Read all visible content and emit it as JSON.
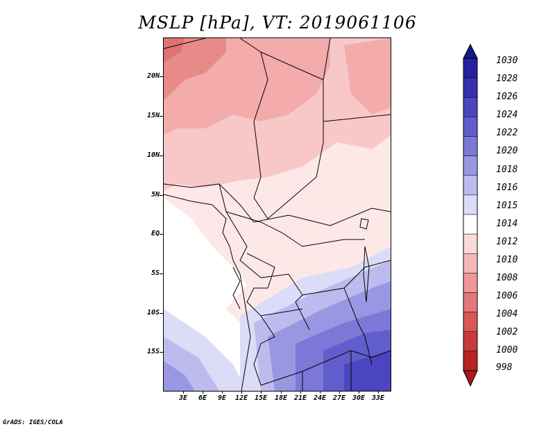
{
  "title": "MSLP [hPa], VT: 2019061106",
  "credit": "GrADS: IGES/COLA",
  "map": {
    "lat_labels": [
      "20N",
      "15N",
      "10N",
      "5N",
      "EQ",
      "5S",
      "10S",
      "15S"
    ],
    "lon_labels": [
      "3E",
      "6E",
      "9E",
      "12E",
      "15E",
      "18E",
      "21E",
      "24E",
      "27E",
      "30E",
      "33E"
    ]
  },
  "colorbar": {
    "labels": [
      "1030",
      "1028",
      "1026",
      "1024",
      "1022",
      "1020",
      "1018",
      "1016",
      "1015",
      "1014",
      "1012",
      "1010",
      "1008",
      "1006",
      "1004",
      "1002",
      "1000",
      "998"
    ],
    "colors": [
      "#1a1590",
      "#2620a0",
      "#3530b0",
      "#4b45bf",
      "#625dcc",
      "#7c78d8",
      "#9a97e2",
      "#bdbbee",
      "#dcdcf8",
      "#ffffff",
      "#fadada",
      "#f5b8b8",
      "#ee9898",
      "#e47878",
      "#d85858",
      "#c83a3a",
      "#b82424",
      "#a81a1a"
    ]
  }
}
